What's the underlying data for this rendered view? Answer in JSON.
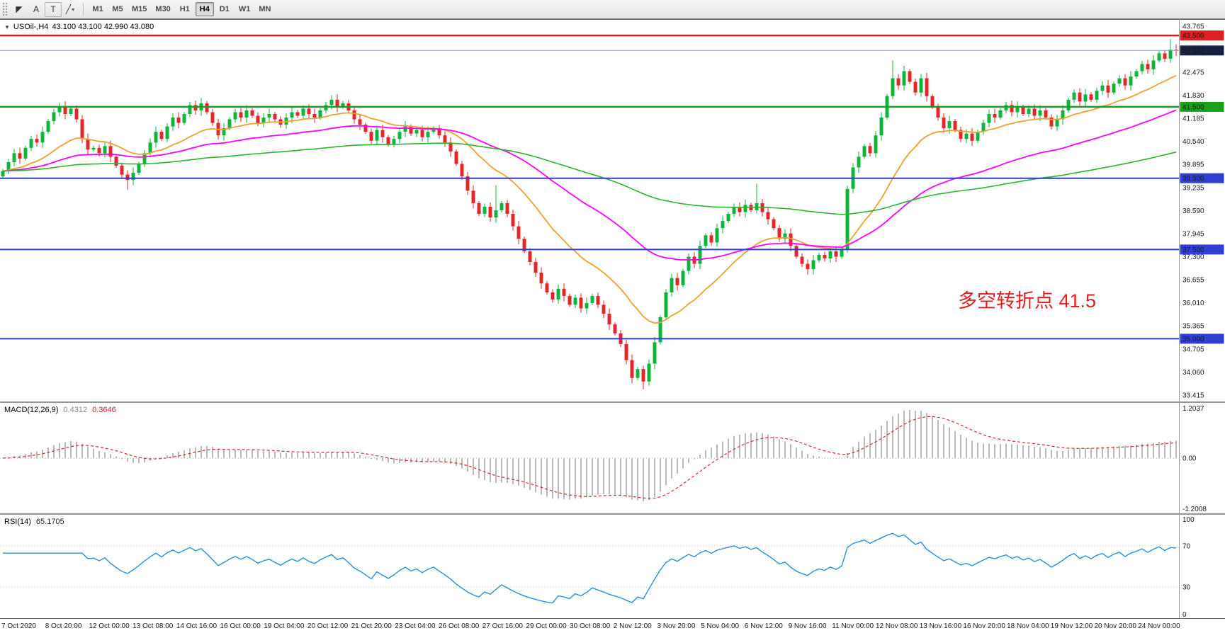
{
  "toolbar": {
    "tools": [
      {
        "name": "cursor",
        "glyph": "◤"
      },
      {
        "name": "label",
        "glyph": "A"
      },
      {
        "name": "text",
        "glyph": "T"
      },
      {
        "name": "draw",
        "glyph": "╱",
        "caret": "▾"
      }
    ],
    "timeframes": [
      {
        "label": "M1",
        "active": false
      },
      {
        "label": "M5",
        "active": false
      },
      {
        "label": "M15",
        "active": false
      },
      {
        "label": "M30",
        "active": false
      },
      {
        "label": "H1",
        "active": false
      },
      {
        "label": "H4",
        "active": true
      },
      {
        "label": "D1",
        "active": false
      },
      {
        "label": "W1",
        "active": false
      },
      {
        "label": "MN",
        "active": false
      }
    ]
  },
  "chart": {
    "title": {
      "marker": "▼",
      "symbol": "USOil-,H4",
      "ohlc": "43.100 43.100 42.990 43.080"
    },
    "annotation": {
      "text": "多空转折点 41.5",
      "color": "#e32020"
    },
    "price_axis": {
      "ticks": [
        "43.765",
        "42.475",
        "41.830",
        "41.185",
        "40.540",
        "39.895",
        "39.235",
        "38.590",
        "37.945",
        "37.300",
        "36.655",
        "36.010",
        "35.365",
        "34.705",
        "34.060",
        "33.415"
      ],
      "badges": [
        {
          "value": "43.500",
          "color": "#e02020"
        },
        {
          "value": "43.080",
          "color": "#16203f"
        },
        {
          "value": "41.500",
          "color": "#18a018"
        },
        {
          "value": "39.500",
          "color": "#2f3fd3"
        },
        {
          "value": "37.500",
          "color": "#2f3fd3"
        },
        {
          "value": "35.000",
          "color": "#2f3fd3"
        }
      ]
    },
    "hlines": [
      {
        "price": 43.5,
        "color": "#e02020",
        "width": 2.5
      },
      {
        "price": 43.08,
        "color": "#7a9cc4",
        "width": 1
      },
      {
        "price": 41.5,
        "color": "#18a018",
        "width": 2.5
      },
      {
        "price": 39.5,
        "color": "#2f3fd3",
        "width": 2
      },
      {
        "price": 37.5,
        "color": "#2f3fd3",
        "width": 2
      },
      {
        "price": 35.0,
        "color": "#2f3fd3",
        "width": 2
      }
    ]
  },
  "macd": {
    "label": "MACD(12,26,9)",
    "value": "0.4312",
    "signal_value": "0.3646",
    "axis": [
      "1.2037",
      "0.00",
      "-1.2008"
    ]
  },
  "rsi": {
    "label": "RSI(14)",
    "value": "65.1705",
    "axis": [
      "100",
      "70",
      "30",
      "0"
    ],
    "levels": [
      70,
      30
    ]
  },
  "time_axis": [
    "7 Oct 2020",
    "8 Oct 20:00",
    "12 Oct 00:00",
    "13 Oct 08:00",
    "14 Oct 16:00",
    "16 Oct 00:00",
    "19 Oct 04:00",
    "20 Oct 12:00",
    "21 Oct 20:00",
    "23 Oct 04:00",
    "26 Oct 08:00",
    "27 Oct 16:00",
    "29 Oct 00:00",
    "30 Oct 08:00",
    "2 Nov 12:00",
    "3 Nov 20:00",
    "5 Nov 04:00",
    "6 Nov 12:00",
    "9 Nov 16:00",
    "11 Nov 00:00",
    "12 Nov 08:00",
    "13 Nov 16:00",
    "16 Nov 20:00",
    "18 Nov 04:00",
    "19 Nov 12:00",
    "20 Nov 20:00",
    "24 Nov 00:00"
  ],
  "colors": {
    "candle_up": "#0fb53d",
    "candle_down": "#e2262a",
    "macd_hist": "#b9b9b9",
    "macd_signal": "#d03030",
    "rsi_line": "#2b8fdd"
  },
  "chart_data": {
    "type": "candlestick",
    "symbol": "USOil-",
    "timeframe": "H4",
    "price_range": [
      33.415,
      43.765
    ],
    "last_ohlc": {
      "open": 43.1,
      "high": 43.1,
      "low": 42.99,
      "close": 43.08
    },
    "open_first": 39.55,
    "closes": [
      39.7,
      39.95,
      40.2,
      40.05,
      40.35,
      40.6,
      40.5,
      40.8,
      41.1,
      41.35,
      41.5,
      41.3,
      41.45,
      41.15,
      40.6,
      40.3,
      40.35,
      40.2,
      40.4,
      40.1,
      39.85,
      39.6,
      39.45,
      39.65,
      39.9,
      40.2,
      40.5,
      40.8,
      40.6,
      40.95,
      41.2,
      41.05,
      41.3,
      41.55,
      41.4,
      41.6,
      41.35,
      41.05,
      40.7,
      40.9,
      41.15,
      41.35,
      41.2,
      41.4,
      41.25,
      41.05,
      41.2,
      41.3,
      41.15,
      41.0,
      41.2,
      41.35,
      41.25,
      41.45,
      41.3,
      41.2,
      41.4,
      41.55,
      41.7,
      41.5,
      41.6,
      41.4,
      41.15,
      41.0,
      40.8,
      40.55,
      40.85,
      40.65,
      40.45,
      40.6,
      40.8,
      40.95,
      40.75,
      40.85,
      40.65,
      40.8,
      40.9,
      40.7,
      40.5,
      40.25,
      39.9,
      39.55,
      39.15,
      38.8,
      38.5,
      38.7,
      38.4,
      38.6,
      38.8,
      38.5,
      38.15,
      37.8,
      37.45,
      37.15,
      36.85,
      36.55,
      36.3,
      36.1,
      36.4,
      36.2,
      35.95,
      36.15,
      35.85,
      36.0,
      36.2,
      35.95,
      35.7,
      35.4,
      35.15,
      34.85,
      34.4,
      33.9,
      34.15,
      33.8,
      34.3,
      34.9,
      35.6,
      36.3,
      36.7,
      36.5,
      36.9,
      37.3,
      37.1,
      37.6,
      37.9,
      37.7,
      38.1,
      38.3,
      38.5,
      38.7,
      38.55,
      38.75,
      38.6,
      38.8,
      38.55,
      38.35,
      38.1,
      37.8,
      37.95,
      37.6,
      37.3,
      37.1,
      36.95,
      37.2,
      37.35,
      37.25,
      37.45,
      37.3,
      37.5,
      39.2,
      39.8,
      40.1,
      40.4,
      40.2,
      40.7,
      41.2,
      41.8,
      42.3,
      42.1,
      42.5,
      42.2,
      41.9,
      42.3,
      41.8,
      41.5,
      41.2,
      40.9,
      41.1,
      40.85,
      40.6,
      40.75,
      40.55,
      40.8,
      41.05,
      41.3,
      41.2,
      41.4,
      41.55,
      41.35,
      41.5,
      41.3,
      41.45,
      41.25,
      41.4,
      41.2,
      40.95,
      41.15,
      41.4,
      41.7,
      41.9,
      41.65,
      41.85,
      41.7,
      41.95,
      42.1,
      41.9,
      42.15,
      42.3,
      42.1,
      42.35,
      42.5,
      42.7,
      42.55,
      42.8,
      43.0,
      42.85,
      43.1,
      43.08
    ],
    "wick_overrides": {
      "10": {
        "high": 41.62
      },
      "22": {
        "low": 39.18
      },
      "87": {
        "high": 39.3
      },
      "113": {
        "low": 33.58
      },
      "133": {
        "high": 39.35
      },
      "142": {
        "low": 36.8
      },
      "157": {
        "high": 42.8
      },
      "206": {
        "high": 43.4
      }
    },
    "moving_averages": [
      {
        "period": 20,
        "color": "#f0a030",
        "width": 1.8
      },
      {
        "period": 55,
        "color": "#ff00ff",
        "width": 1.8
      },
      {
        "period": 150,
        "color": "#2db52d",
        "width": 1.6
      }
    ]
  }
}
